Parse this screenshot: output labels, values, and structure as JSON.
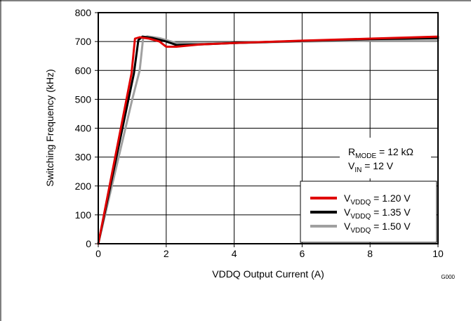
{
  "chart_data": {
    "type": "line",
    "xlabel": "VDDQ Output Current  (A)",
    "ylabel": "Switching Frequency (kHz)",
    "xlim": [
      0,
      10
    ],
    "ylim": [
      0,
      800
    ],
    "xticks": [
      0,
      2,
      4,
      6,
      8,
      10
    ],
    "yticks": [
      0,
      100,
      200,
      300,
      400,
      500,
      600,
      700,
      800
    ],
    "grid": true,
    "figure_id": "G000",
    "conditions": {
      "rmode": {
        "base": "R",
        "sub": "MODE",
        "value": " = 12 kΩ"
      },
      "vin": {
        "base": "V",
        "sub": "IN",
        "value": " = 12 V"
      }
    },
    "legend_position": "bottom-right",
    "series": [
      {
        "name": {
          "base": "V",
          "sub": "VDDQ",
          "value": " = 1.20 V"
        },
        "color": "#e00000",
        "x": [
          0,
          0.98,
          1.08,
          1.22,
          1.5,
          1.8,
          2.0,
          2.3,
          3,
          4,
          6,
          8,
          10
        ],
        "y": [
          0,
          590,
          710,
          715,
          710,
          700,
          682,
          682,
          690,
          695,
          703,
          710,
          717
        ]
      },
      {
        "name": {
          "base": "V",
          "sub": "VDDQ",
          "value": " = 1.35 V"
        },
        "color": "#000000",
        "x": [
          0,
          1.05,
          1.18,
          1.3,
          1.6,
          2.0,
          2.3,
          3,
          4,
          6,
          8,
          10
        ],
        "y": [
          0,
          590,
          705,
          717,
          712,
          700,
          688,
          690,
          695,
          702,
          708,
          712
        ]
      },
      {
        "name": {
          "base": "V",
          "sub": "VDDQ",
          "value": " = 1.50 V"
        },
        "color": "#a0a0a0",
        "x": [
          0,
          1.0,
          1.22,
          1.32,
          1.45,
          1.8,
          2.3,
          3,
          4,
          6,
          8,
          10
        ],
        "y": [
          0,
          500,
          600,
          712,
          718,
          712,
          695,
          693,
          695,
          700,
          703,
          703
        ]
      }
    ]
  }
}
